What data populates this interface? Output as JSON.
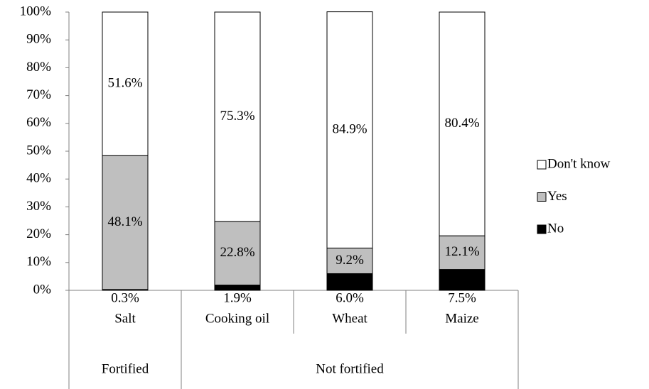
{
  "chart_data": {
    "type": "stacked_bar",
    "categories": [
      "Salt",
      "Cooking oil",
      "Wheat",
      "Maize"
    ],
    "groups": [
      {
        "name": "Fortified",
        "size": 1
      },
      {
        "name": "Not fortified",
        "size": 3
      }
    ],
    "series": [
      {
        "name": "No",
        "color": "#000000",
        "values": [
          0.3,
          1.9,
          6.0,
          7.5
        ],
        "value_labels": [
          "0.3%",
          "1.9%",
          "6.0%",
          "7.5%"
        ]
      },
      {
        "name": "Yes",
        "color": "#bfbfbf",
        "values": [
          48.1,
          22.8,
          9.2,
          12.1
        ],
        "value_labels": [
          "48.1%",
          "22.8%",
          "9.2%",
          "12.1%"
        ]
      },
      {
        "name": "Don't know",
        "color": "#ffffff",
        "values": [
          51.6,
          75.3,
          84.9,
          80.4
        ],
        "value_labels": [
          "51.6%",
          "75.3%",
          "84.9%",
          "80.4%"
        ]
      }
    ],
    "ylim": [
      0,
      100
    ],
    "yticks": [
      {
        "value": 0,
        "label": "0%"
      },
      {
        "value": 10,
        "label": "10%"
      },
      {
        "value": 20,
        "label": "20%"
      },
      {
        "value": 30,
        "label": "30%"
      },
      {
        "value": 40,
        "label": "40%"
      },
      {
        "value": 50,
        "label": "50%"
      },
      {
        "value": 60,
        "label": "60%"
      },
      {
        "value": 70,
        "label": "70%"
      },
      {
        "value": 80,
        "label": "80%"
      },
      {
        "value": 90,
        "label": "90%"
      },
      {
        "value": 100,
        "label": "100%"
      }
    ],
    "legend": "right"
  }
}
